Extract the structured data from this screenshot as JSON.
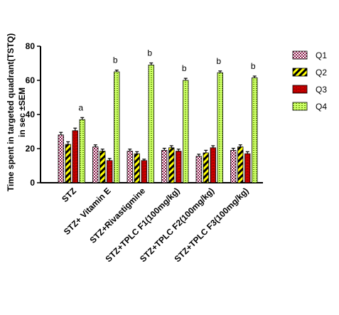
{
  "chart_data": {
    "type": "bar",
    "ylabel": [
      "Time spent in targeted quadrant(TSTQ)",
      "in sec ±SEM"
    ],
    "ylim": [
      0,
      80
    ],
    "yticks": [
      0,
      20,
      40,
      60,
      80
    ],
    "legend_position": "top-right",
    "categories": [
      "STZ",
      "STZ+ Vitamin E",
      "STZ+Rivastigmine",
      "STZ+TPLC F1(100mg/kg)",
      "STZ+TPLC F2(100mg/kg)",
      "STZ+TPLC F3(100mg/kg)"
    ],
    "series": [
      {
        "name": "Q1",
        "pattern": "checker",
        "values": [
          28,
          21,
          18.5,
          19,
          15.5,
          19
        ],
        "errors": [
          1.5,
          1.2,
          1.2,
          1.2,
          1.2,
          1.2
        ]
      },
      {
        "name": "Q2",
        "pattern": "stripe",
        "values": [
          22.5,
          18.5,
          17,
          20.5,
          17.5,
          21
        ],
        "errors": [
          1.5,
          1.2,
          1.2,
          1.2,
          1.5,
          1.2
        ]
      },
      {
        "name": "Q3",
        "pattern": "brick",
        "values": [
          30.5,
          13,
          13,
          18.5,
          20.5,
          17
        ],
        "errors": [
          1.5,
          1.2,
          0.8,
          1.2,
          1.2,
          1.2
        ]
      },
      {
        "name": "Q4",
        "pattern": "dash",
        "values": [
          37,
          65,
          69,
          60,
          64.5,
          61.5
        ],
        "errors": [
          1.2,
          1.0,
          1.2,
          1.2,
          1.0,
          1.0
        ]
      }
    ],
    "annotations": [
      "a",
      "b",
      "b",
      "b",
      "b",
      "b"
    ],
    "colors": {
      "Q1": "#e8c8e8",
      "Q2": "#ffff00",
      "Q3": "#e00000",
      "Q4": "#ccff66"
    }
  }
}
